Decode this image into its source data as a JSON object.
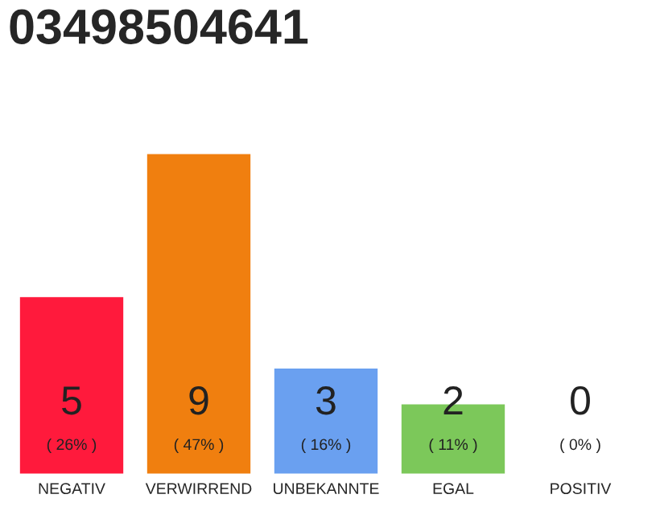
{
  "chart_data": {
    "type": "bar",
    "title": "03498504641",
    "categories": [
      "NEGATIV",
      "VERWIRREND",
      "UNBEKANNTE",
      "EGAL",
      "POSITIV"
    ],
    "values": [
      5,
      9,
      3,
      2,
      0
    ],
    "colors": [
      "#ff1a3c",
      "#f07f0f",
      "#6aa0f0",
      "#7cc85a",
      null
    ],
    "value_labels": [
      "5\n( 26% )",
      "9\n( 47% )",
      "3\n( 16% )",
      "2\n( 11% )",
      "0\n( 0% )"
    ],
    "ylim": [
      0,
      9
    ],
    "tick_labels": "x",
    "grid": false,
    "legend": false
  }
}
